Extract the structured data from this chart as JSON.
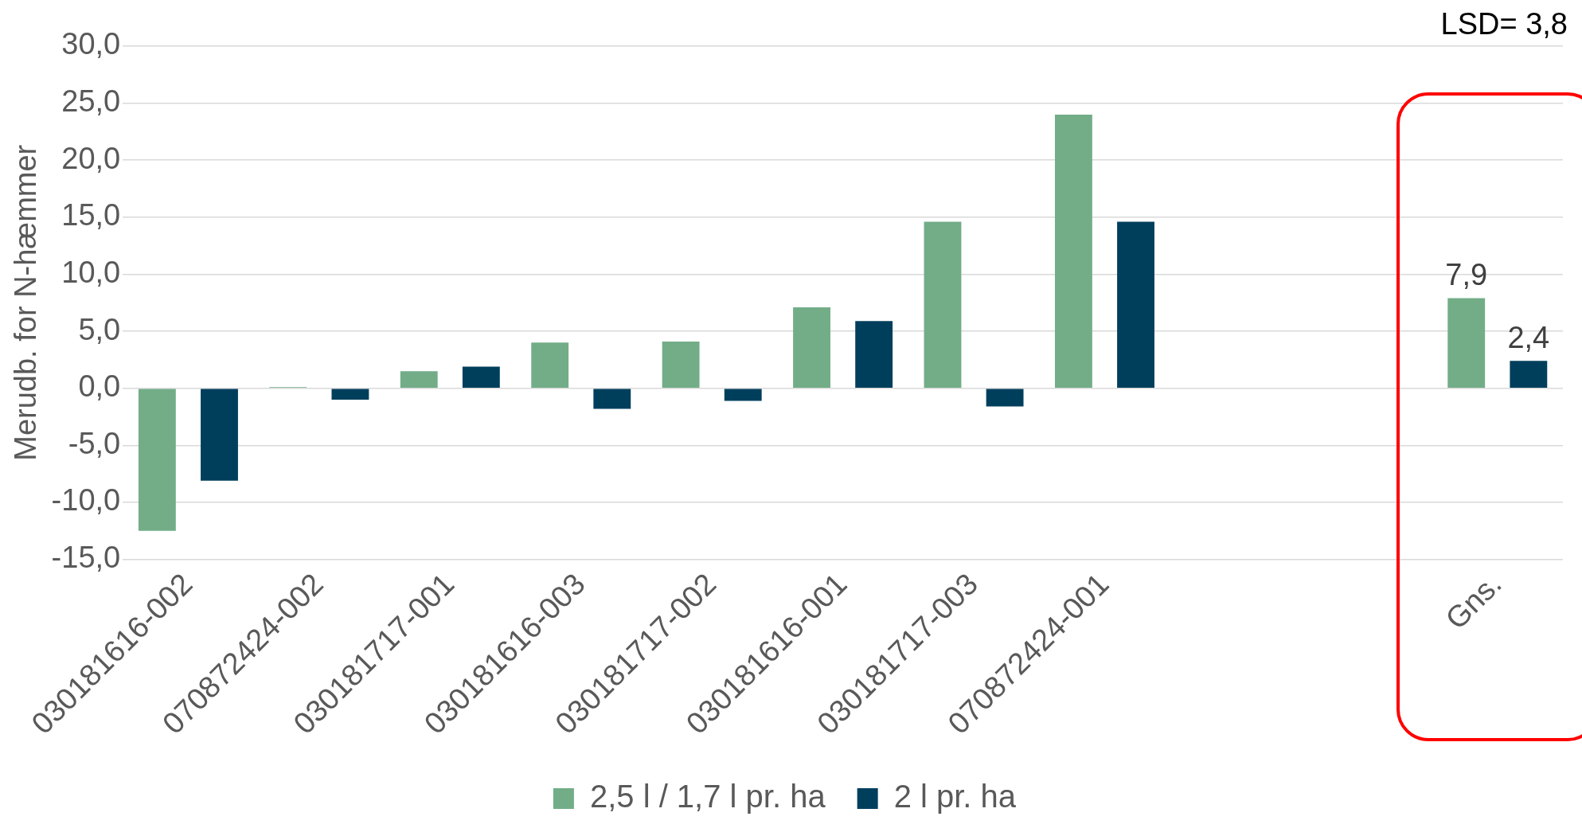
{
  "chart_data": {
    "type": "bar",
    "categories": [
      "030181616-002",
      "070872424-002",
      "030181717-001",
      "030181616-003",
      "030181717-002",
      "030181616-001",
      "030181717-003",
      "070872424-001",
      null,
      null,
      "Gns."
    ],
    "series": [
      {
        "name": "2,5 l / 1,7 l pr. ha",
        "color": "#72ad88",
        "values": [
          -12.5,
          0.1,
          1.5,
          4.0,
          4.1,
          7.1,
          14.6,
          24.0,
          null,
          null,
          7.9
        ],
        "value_labels": [
          null,
          null,
          null,
          null,
          null,
          null,
          null,
          null,
          null,
          null,
          "7,9"
        ]
      },
      {
        "name": "2 l pr. ha",
        "color": "#003f5c",
        "values": [
          -8.1,
          -1.0,
          1.9,
          -1.8,
          -1.1,
          5.9,
          -1.6,
          14.6,
          null,
          null,
          2.4
        ],
        "value_labels": [
          null,
          null,
          null,
          null,
          null,
          null,
          null,
          null,
          null,
          null,
          "2,4"
        ]
      }
    ],
    "ylabel": "Merudb. for N-hæmmer",
    "ylim": [
      -15,
      30
    ],
    "yticks": [
      {
        "value": -15,
        "label": "-15,0"
      },
      {
        "value": -10,
        "label": "-10,0"
      },
      {
        "value": -5,
        "label": "-5,0"
      },
      {
        "value": 0,
        "label": "0,0"
      },
      {
        "value": 5,
        "label": "5,0"
      },
      {
        "value": 10,
        "label": "10,0"
      },
      {
        "value": 15,
        "label": "15,0"
      },
      {
        "value": 20,
        "label": "20,0"
      },
      {
        "value": 25,
        "label": "25,0"
      },
      {
        "value": 30,
        "label": "30,0"
      }
    ],
    "grid": "y",
    "legend": "bottom",
    "annotations": [
      "LSD= 3,8"
    ]
  }
}
